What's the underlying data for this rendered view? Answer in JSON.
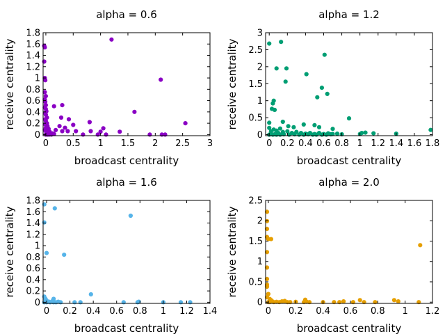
{
  "chart_data": [
    {
      "type": "scatter",
      "title": "alpha = 0.6",
      "xlabel": "broadcast centrality",
      "ylabel": "receive centrality",
      "xlim": [
        -0.05,
        3
      ],
      "ylim": [
        -0.02,
        1.8
      ],
      "xticks": [
        0,
        0.5,
        1,
        1.5,
        2,
        2.5,
        3
      ],
      "yticks": [
        0,
        0.2,
        0.4,
        0.6,
        0.8,
        1,
        1.2,
        1.4,
        1.6,
        1.8
      ],
      "xtick_labels": [
        "0",
        "0.5",
        "1",
        "1.5",
        "2",
        "2.5",
        "3"
      ],
      "ytick_labels": [
        "0",
        "0.2",
        "0.4",
        "0.6",
        "0.8",
        "1",
        "1.2",
        "1.4",
        "1.6",
        "1.8"
      ],
      "grid": false,
      "color": "#8a00c4",
      "points": [
        [
          -0.03,
          1.57
        ],
        [
          -0.02,
          1.54
        ],
        [
          -0.03,
          1.29
        ],
        [
          -0.02,
          1.0
        ],
        [
          -0.01,
          0.96
        ],
        [
          -0.02,
          0.75
        ],
        [
          0.0,
          0.68
        ],
        [
          -0.02,
          0.62
        ],
        [
          -0.01,
          0.58
        ],
        [
          0.0,
          0.52
        ],
        [
          -0.02,
          0.48
        ],
        [
          0.0,
          0.45
        ],
        [
          0.01,
          0.41
        ],
        [
          -0.01,
          0.38
        ],
        [
          0.0,
          0.35
        ],
        [
          0.02,
          0.3
        ],
        [
          -0.01,
          0.27
        ],
        [
          0.0,
          0.24
        ],
        [
          0.02,
          0.2
        ],
        [
          -0.01,
          0.18
        ],
        [
          0.03,
          0.15
        ],
        [
          0.0,
          0.12
        ],
        [
          0.05,
          0.1
        ],
        [
          -0.02,
          0.08
        ],
        [
          0.02,
          0.06
        ],
        [
          0.07,
          0.05
        ],
        [
          0.01,
          0.03
        ],
        [
          0.04,
          0.02
        ],
        [
          0.09,
          0.01
        ],
        [
          0.12,
          0.02
        ],
        [
          0.0,
          0.0
        ],
        [
          0.03,
          0.0
        ],
        [
          0.06,
          0.0
        ],
        [
          0.1,
          0.0
        ],
        [
          0.15,
          0.01
        ],
        [
          0.15,
          0.5
        ],
        [
          0.3,
          0.52
        ],
        [
          0.28,
          0.3
        ],
        [
          0.42,
          0.27
        ],
        [
          0.25,
          0.15
        ],
        [
          0.35,
          0.12
        ],
        [
          0.5,
          0.17
        ],
        [
          0.3,
          0.06
        ],
        [
          0.4,
          0.06
        ],
        [
          0.55,
          0.06
        ],
        [
          0.18,
          0.08
        ],
        [
          0.68,
          0.0
        ],
        [
          0.8,
          0.22
        ],
        [
          0.82,
          0.06
        ],
        [
          0.95,
          0.0
        ],
        [
          1.0,
          0.05
        ],
        [
          1.05,
          0.11
        ],
        [
          1.1,
          0.0
        ],
        [
          1.2,
          1.68
        ],
        [
          1.35,
          0.05
        ],
        [
          1.62,
          0.4
        ],
        [
          1.9,
          0.0
        ],
        [
          2.1,
          0.97
        ],
        [
          2.12,
          0.0
        ],
        [
          2.18,
          0.0
        ],
        [
          2.55,
          0.2
        ]
      ]
    },
    {
      "type": "scatter",
      "title": "alpha = 1.2",
      "xlabel": "broadcast centrality",
      "ylabel": "receive centrality",
      "xlim": [
        -0.04,
        1.8
      ],
      "ylim": [
        -0.03,
        3
      ],
      "xticks": [
        0,
        0.2,
        0.4,
        0.6,
        0.8,
        1,
        1.2,
        1.4,
        1.6,
        1.8
      ],
      "yticks": [
        0,
        0.5,
        1,
        1.5,
        2,
        2.5,
        3
      ],
      "xtick_labels": [
        "0",
        "0.2",
        "0.4",
        "0.6",
        "0.8",
        "1",
        "1.2",
        "1.4",
        "1.6",
        "1.8"
      ],
      "ytick_labels": [
        "0",
        "0.5",
        "1",
        "1.5",
        "2",
        "2.5",
        "3"
      ],
      "grid": false,
      "color": "#009e73",
      "points": [
        [
          0.0,
          2.68
        ],
        [
          0.13,
          2.73
        ],
        [
          0.61,
          2.35
        ],
        [
          0.08,
          1.95
        ],
        [
          0.19,
          1.95
        ],
        [
          0.41,
          1.78
        ],
        [
          0.18,
          1.56
        ],
        [
          0.58,
          1.38
        ],
        [
          0.64,
          1.2
        ],
        [
          0.53,
          1.1
        ],
        [
          0.05,
          1.0
        ],
        [
          0.04,
          0.92
        ],
        [
          0.03,
          0.76
        ],
        [
          0.06,
          0.73
        ],
        [
          0.88,
          0.48
        ],
        [
          0.15,
          0.38
        ],
        [
          0.38,
          0.3
        ],
        [
          0.0,
          0.35
        ],
        [
          0.21,
          0.25
        ],
        [
          0.27,
          0.22
        ],
        [
          0.5,
          0.28
        ],
        [
          0.55,
          0.22
        ],
        [
          0.7,
          0.17
        ],
        [
          0.12,
          0.18
        ],
        [
          0.05,
          0.15
        ],
        [
          0.0,
          0.2
        ],
        [
          0.02,
          0.1
        ],
        [
          0.08,
          0.12
        ],
        [
          0.1,
          0.05
        ],
        [
          0.15,
          0.08
        ],
        [
          0.2,
          0.1
        ],
        [
          0.25,
          0.05
        ],
        [
          0.3,
          0.08
        ],
        [
          0.35,
          0.05
        ],
        [
          0.4,
          0.03
        ],
        [
          0.45,
          0.05
        ],
        [
          0.5,
          0.02
        ],
        [
          0.55,
          0.05
        ],
        [
          0.6,
          0.02
        ],
        [
          0.65,
          0.04
        ],
        [
          0.7,
          0.02
        ],
        [
          0.75,
          0.03
        ],
        [
          0.8,
          0.01
        ],
        [
          0.0,
          0.0
        ],
        [
          0.02,
          0.02
        ],
        [
          0.04,
          0.0
        ],
        [
          0.06,
          0.01
        ],
        [
          0.08,
          0.0
        ],
        [
          0.12,
          0.0
        ],
        [
          0.16,
          0.01
        ],
        [
          0.22,
          0.0
        ],
        [
          0.28,
          0.01
        ],
        [
          0.33,
          0.0
        ],
        [
          0.38,
          0.0
        ],
        [
          0.43,
          0.01
        ],
        [
          0.48,
          0.0
        ],
        [
          0.52,
          0.0
        ],
        [
          0.58,
          0.0
        ],
        [
          0.63,
          0.0
        ],
        [
          0.68,
          0.01
        ],
        [
          1.0,
          0.02
        ],
        [
          1.02,
          0.05
        ],
        [
          1.06,
          0.06
        ],
        [
          1.15,
          0.04
        ],
        [
          1.4,
          0.03
        ],
        [
          1.78,
          0.14
        ]
      ]
    },
    {
      "type": "scatter",
      "title": "alpha = 1.6",
      "xlabel": "broadcast centrality",
      "ylabel": "receive centrality",
      "xlim": [
        -0.03,
        1.4
      ],
      "ylim": [
        -0.02,
        1.8
      ],
      "xticks": [
        0,
        0.2,
        0.4,
        0.6,
        0.8,
        1,
        1.2,
        1.4
      ],
      "yticks": [
        0,
        0.2,
        0.4,
        0.6,
        0.8,
        1,
        1.2,
        1.4,
        1.6,
        1.8
      ],
      "xtick_labels": [
        "0",
        "0.2",
        "0.4",
        "0.6",
        "0.8",
        "1",
        "1.2",
        "1.4"
      ],
      "ytick_labels": [
        "0",
        "0.2",
        "0.4",
        "0.6",
        "0.8",
        "1",
        "1.2",
        "1.4",
        "1.6",
        "1.8"
      ],
      "grid": false,
      "color": "#56b4e9",
      "points": [
        [
          -0.02,
          1.73
        ],
        [
          -0.02,
          1.41
        ],
        [
          0.07,
          1.66
        ],
        [
          0.0,
          0.87
        ],
        [
          0.15,
          0.84
        ],
        [
          0.72,
          1.53
        ],
        [
          0.38,
          0.14
        ],
        [
          -0.02,
          0.1
        ],
        [
          0.06,
          0.06
        ],
        [
          -0.01,
          0.06
        ],
        [
          0.0,
          0.03
        ],
        [
          0.02,
          0.01
        ],
        [
          0.05,
          0.02
        ],
        [
          0.08,
          0.0
        ],
        [
          0.1,
          0.01
        ],
        [
          0.12,
          0.0
        ],
        [
          -0.02,
          0.0
        ],
        [
          0.0,
          0.0
        ],
        [
          0.03,
          0.0
        ],
        [
          0.06,
          0.0
        ],
        [
          0.24,
          0.0
        ],
        [
          0.29,
          0.0
        ],
        [
          0.66,
          0.0
        ],
        [
          0.78,
          0.0
        ],
        [
          0.79,
          0.01
        ],
        [
          1.0,
          0.0
        ],
        [
          1.15,
          0.0
        ],
        [
          1.23,
          0.0
        ]
      ]
    },
    {
      "type": "scatter",
      "title": "alpha = 2.0",
      "xlabel": "broadcast centrality",
      "ylabel": "receive centrality",
      "xlim": [
        -0.02,
        1.2
      ],
      "ylim": [
        -0.03,
        2.5
      ],
      "xticks": [
        0,
        0.2,
        0.4,
        0.6,
        0.8,
        1,
        1.2
      ],
      "yticks": [
        0,
        0.5,
        1,
        1.5,
        2,
        2.5
      ],
      "xtick_labels": [
        "0",
        "0.2",
        "0.4",
        "0.6",
        "0.8",
        "1",
        "1.2"
      ],
      "ytick_labels": [
        "0",
        "0.5",
        "1",
        "1.5",
        "2",
        "2.5"
      ],
      "grid": false,
      "color": "#e69f00",
      "points": [
        [
          -0.01,
          2.22
        ],
        [
          -0.01,
          1.99
        ],
        [
          -0.01,
          1.8
        ],
        [
          -0.01,
          1.6
        ],
        [
          0.0,
          1.55
        ],
        [
          0.02,
          1.55
        ],
        [
          -0.01,
          1.23
        ],
        [
          -0.01,
          0.85
        ],
        [
          -0.01,
          0.57
        ],
        [
          -0.01,
          0.43
        ],
        [
          -0.01,
          0.38
        ],
        [
          0.0,
          0.2
        ],
        [
          -0.01,
          0.12
        ],
        [
          0.01,
          0.08
        ],
        [
          0.02,
          0.05
        ],
        [
          0.03,
          0.02
        ],
        [
          0.0,
          0.0
        ],
        [
          0.01,
          0.0
        ],
        [
          0.04,
          0.0
        ],
        [
          0.06,
          0.01
        ],
        [
          0.08,
          0.0
        ],
        [
          0.1,
          0.02
        ],
        [
          0.12,
          0.03
        ],
        [
          0.14,
          0.0
        ],
        [
          0.16,
          0.0
        ],
        [
          0.2,
          0.01
        ],
        [
          0.26,
          0.0
        ],
        [
          0.27,
          0.06
        ],
        [
          0.28,
          0.01
        ],
        [
          0.3,
          0.0
        ],
        [
          0.4,
          0.0
        ],
        [
          0.48,
          0.0
        ],
        [
          0.52,
          0.0
        ],
        [
          0.55,
          0.02
        ],
        [
          0.62,
          0.0
        ],
        [
          0.67,
          0.05
        ],
        [
          0.7,
          0.0
        ],
        [
          0.78,
          0.0
        ],
        [
          0.92,
          0.05
        ],
        [
          0.95,
          0.02
        ],
        [
          1.1,
          0.0
        ],
        [
          1.11,
          1.4
        ]
      ]
    }
  ]
}
